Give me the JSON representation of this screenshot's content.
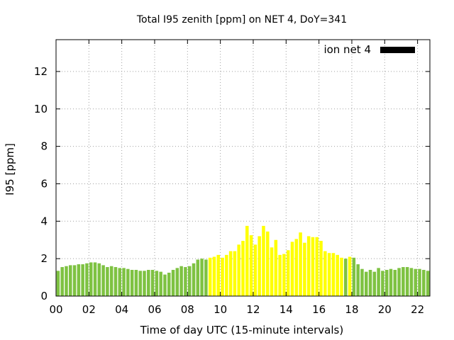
{
  "chart_data": {
    "type": "bar",
    "title": "Total I95 zenith [ppm] on NET 4, DoY=341",
    "xlabel": "Time of day UTC (15-minute intervals)",
    "ylabel": "I95 [ppm]",
    "xlim": [
      0,
      22.75
    ],
    "ylim": [
      0,
      13.7
    ],
    "x_ticks": [
      {
        "value": 0,
        "label": "00"
      },
      {
        "value": 2,
        "label": "02"
      },
      {
        "value": 4,
        "label": "04"
      },
      {
        "value": 6,
        "label": "06"
      },
      {
        "value": 8,
        "label": "08"
      },
      {
        "value": 10,
        "label": "10"
      },
      {
        "value": 12,
        "label": "12"
      },
      {
        "value": 14,
        "label": "14"
      },
      {
        "value": 16,
        "label": "16"
      },
      {
        "value": 18,
        "label": "18"
      },
      {
        "value": 20,
        "label": "20"
      },
      {
        "value": 22,
        "label": "22"
      }
    ],
    "y_ticks": [
      {
        "value": 0,
        "label": "0"
      },
      {
        "value": 2,
        "label": "2"
      },
      {
        "value": 4,
        "label": "4"
      },
      {
        "value": 6,
        "label": "6"
      },
      {
        "value": 8,
        "label": "8"
      },
      {
        "value": 10,
        "label": "10"
      },
      {
        "value": 12,
        "label": "12"
      }
    ],
    "grid": true,
    "legend": {
      "position": "top-right",
      "label": "ion net 4",
      "color": "#000000"
    },
    "colors": {
      "low": "#7ec242",
      "high": "#ffff00"
    },
    "series": [
      {
        "name": "ion net 4",
        "points": [
          {
            "x": 0.0,
            "y": 1.35,
            "level": "low"
          },
          {
            "x": 0.25,
            "y": 1.55,
            "level": "low"
          },
          {
            "x": 0.5,
            "y": 1.6,
            "level": "low"
          },
          {
            "x": 0.75,
            "y": 1.65,
            "level": "low"
          },
          {
            "x": 1.0,
            "y": 1.65,
            "level": "low"
          },
          {
            "x": 1.25,
            "y": 1.7,
            "level": "low"
          },
          {
            "x": 1.5,
            "y": 1.7,
            "level": "low"
          },
          {
            "x": 1.75,
            "y": 1.75,
            "level": "low"
          },
          {
            "x": 2.0,
            "y": 1.8,
            "level": "low"
          },
          {
            "x": 2.25,
            "y": 1.8,
            "level": "low"
          },
          {
            "x": 2.5,
            "y": 1.75,
            "level": "low"
          },
          {
            "x": 2.75,
            "y": 1.65,
            "level": "low"
          },
          {
            "x": 3.0,
            "y": 1.55,
            "level": "low"
          },
          {
            "x": 3.25,
            "y": 1.6,
            "level": "low"
          },
          {
            "x": 3.5,
            "y": 1.55,
            "level": "low"
          },
          {
            "x": 3.75,
            "y": 1.5,
            "level": "low"
          },
          {
            "x": 4.0,
            "y": 1.5,
            "level": "low"
          },
          {
            "x": 4.25,
            "y": 1.45,
            "level": "low"
          },
          {
            "x": 4.5,
            "y": 1.4,
            "level": "low"
          },
          {
            "x": 4.75,
            "y": 1.4,
            "level": "low"
          },
          {
            "x": 5.0,
            "y": 1.35,
            "level": "low"
          },
          {
            "x": 5.25,
            "y": 1.35,
            "level": "low"
          },
          {
            "x": 5.5,
            "y": 1.4,
            "level": "low"
          },
          {
            "x": 5.75,
            "y": 1.4,
            "level": "low"
          },
          {
            "x": 6.0,
            "y": 1.35,
            "level": "low"
          },
          {
            "x": 6.25,
            "y": 1.3,
            "level": "low"
          },
          {
            "x": 6.5,
            "y": 1.15,
            "level": "low"
          },
          {
            "x": 6.75,
            "y": 1.25,
            "level": "low"
          },
          {
            "x": 7.0,
            "y": 1.4,
            "level": "low"
          },
          {
            "x": 7.25,
            "y": 1.5,
            "level": "low"
          },
          {
            "x": 7.5,
            "y": 1.6,
            "level": "low"
          },
          {
            "x": 7.75,
            "y": 1.55,
            "level": "low"
          },
          {
            "x": 8.0,
            "y": 1.6,
            "level": "low"
          },
          {
            "x": 8.25,
            "y": 1.75,
            "level": "low"
          },
          {
            "x": 8.5,
            "y": 1.95,
            "level": "low"
          },
          {
            "x": 8.75,
            "y": 2.0,
            "level": "low"
          },
          {
            "x": 9.0,
            "y": 1.95,
            "level": "low"
          },
          {
            "x": 9.25,
            "y": 2.05,
            "level": "high"
          },
          {
            "x": 9.5,
            "y": 2.1,
            "level": "high"
          },
          {
            "x": 9.75,
            "y": 2.2,
            "level": "high"
          },
          {
            "x": 10.0,
            "y": 2.05,
            "level": "high"
          },
          {
            "x": 10.25,
            "y": 2.2,
            "level": "high"
          },
          {
            "x": 10.5,
            "y": 2.4,
            "level": "high"
          },
          {
            "x": 10.75,
            "y": 2.4,
            "level": "high"
          },
          {
            "x": 11.0,
            "y": 2.75,
            "level": "high"
          },
          {
            "x": 11.25,
            "y": 2.95,
            "level": "high"
          },
          {
            "x": 11.5,
            "y": 3.75,
            "level": "high"
          },
          {
            "x": 11.75,
            "y": 3.25,
            "level": "high"
          },
          {
            "x": 12.0,
            "y": 2.75,
            "level": "high"
          },
          {
            "x": 12.25,
            "y": 3.2,
            "level": "high"
          },
          {
            "x": 12.5,
            "y": 3.75,
            "level": "high"
          },
          {
            "x": 12.75,
            "y": 3.45,
            "level": "high"
          },
          {
            "x": 13.0,
            "y": 2.6,
            "level": "high"
          },
          {
            "x": 13.25,
            "y": 3.0,
            "level": "high"
          },
          {
            "x": 13.5,
            "y": 2.2,
            "level": "high"
          },
          {
            "x": 13.75,
            "y": 2.25,
            "level": "high"
          },
          {
            "x": 14.0,
            "y": 2.45,
            "level": "high"
          },
          {
            "x": 14.25,
            "y": 2.9,
            "level": "high"
          },
          {
            "x": 14.5,
            "y": 3.05,
            "level": "high"
          },
          {
            "x": 14.75,
            "y": 3.4,
            "level": "high"
          },
          {
            "x": 15.0,
            "y": 2.85,
            "level": "high"
          },
          {
            "x": 15.25,
            "y": 3.2,
            "level": "high"
          },
          {
            "x": 15.5,
            "y": 3.15,
            "level": "high"
          },
          {
            "x": 15.75,
            "y": 3.15,
            "level": "high"
          },
          {
            "x": 16.0,
            "y": 2.95,
            "level": "high"
          },
          {
            "x": 16.25,
            "y": 2.4,
            "level": "high"
          },
          {
            "x": 16.5,
            "y": 2.3,
            "level": "high"
          },
          {
            "x": 16.75,
            "y": 2.3,
            "level": "high"
          },
          {
            "x": 17.0,
            "y": 2.2,
            "level": "high"
          },
          {
            "x": 17.25,
            "y": 2.05,
            "level": "high"
          },
          {
            "x": 17.5,
            "y": 2.0,
            "level": "low"
          },
          {
            "x": 17.75,
            "y": 2.1,
            "level": "high"
          },
          {
            "x": 18.0,
            "y": 2.05,
            "level": "low"
          },
          {
            "x": 18.25,
            "y": 1.7,
            "level": "low"
          },
          {
            "x": 18.5,
            "y": 1.45,
            "level": "low"
          },
          {
            "x": 18.75,
            "y": 1.3,
            "level": "low"
          },
          {
            "x": 19.0,
            "y": 1.4,
            "level": "low"
          },
          {
            "x": 19.25,
            "y": 1.3,
            "level": "low"
          },
          {
            "x": 19.5,
            "y": 1.5,
            "level": "low"
          },
          {
            "x": 19.75,
            "y": 1.35,
            "level": "low"
          },
          {
            "x": 20.0,
            "y": 1.4,
            "level": "low"
          },
          {
            "x": 20.25,
            "y": 1.45,
            "level": "low"
          },
          {
            "x": 20.5,
            "y": 1.4,
            "level": "low"
          },
          {
            "x": 20.75,
            "y": 1.5,
            "level": "low"
          },
          {
            "x": 21.0,
            "y": 1.55,
            "level": "low"
          },
          {
            "x": 21.25,
            "y": 1.55,
            "level": "low"
          },
          {
            "x": 21.5,
            "y": 1.5,
            "level": "low"
          },
          {
            "x": 21.75,
            "y": 1.45,
            "level": "low"
          },
          {
            "x": 22.0,
            "y": 1.45,
            "level": "low"
          },
          {
            "x": 22.25,
            "y": 1.4,
            "level": "low"
          },
          {
            "x": 22.5,
            "y": 1.35,
            "level": "low"
          }
        ]
      }
    ]
  }
}
